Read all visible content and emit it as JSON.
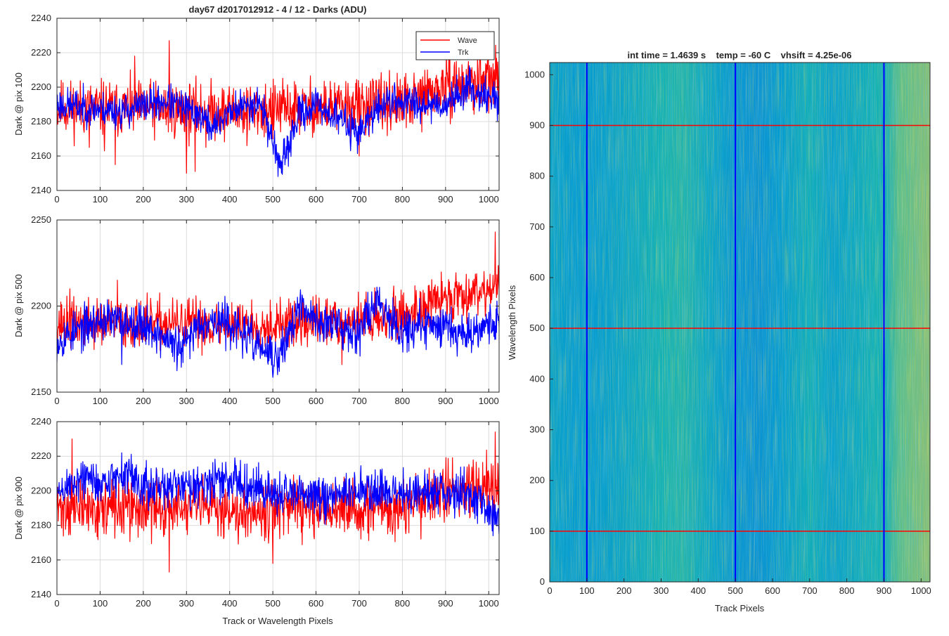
{
  "chart_data": [
    {
      "type": "line",
      "title": "day67 d2017012912 - 4 / 12 - Darks (ADU)",
      "xlabel": "",
      "ylabel": "Dark @ pix 100",
      "xlim": [
        0,
        1024
      ],
      "ylim": [
        2140,
        2240
      ],
      "xticks": [
        0,
        100,
        200,
        300,
        400,
        500,
        600,
        700,
        800,
        900,
        1000
      ],
      "yticks": [
        2140,
        2160,
        2180,
        2200,
        2220,
        2240
      ],
      "grid": true,
      "legend": {
        "position": "top-right",
        "entries": [
          "Wave",
          "Trk"
        ]
      },
      "series": [
        {
          "name": "Wave",
          "color": "#ff0000",
          "base": 2188,
          "noise": 8,
          "seed": 11,
          "trend": [
            [
              0,
              2188
            ],
            [
              400,
              2186
            ],
            [
              800,
              2190
            ],
            [
              900,
              2200
            ],
            [
              1024,
              2204
            ]
          ],
          "spikes": [
            [
              75,
              2165
            ],
            [
              110,
              2163
            ],
            [
              135,
              2155
            ],
            [
              180,
              2218
            ],
            [
              260,
              2227
            ],
            [
              300,
              2150
            ],
            [
              320,
              2151
            ],
            [
              345,
              2165
            ],
            [
              440,
              2166
            ],
            [
              500,
              2170
            ],
            [
              700,
              2160
            ],
            [
              925,
              2215
            ],
            [
              980,
              2220
            ]
          ]
        },
        {
          "name": "Trk",
          "color": "#0000ff",
          "base": 2190,
          "noise": 5,
          "seed": 23,
          "trend": [
            [
              0,
              2190
            ],
            [
              150,
              2186
            ],
            [
              250,
              2192
            ],
            [
              330,
              2184
            ],
            [
              360,
              2176
            ],
            [
              400,
              2186
            ],
            [
              470,
              2192
            ],
            [
              520,
              2153
            ],
            [
              560,
              2184
            ],
            [
              600,
              2190
            ],
            [
              700,
              2174
            ],
            [
              760,
              2192
            ],
            [
              900,
              2190
            ],
            [
              950,
              2200
            ],
            [
              1024,
              2192
            ]
          ],
          "spikes": [
            [
              520,
              2150
            ],
            [
              680,
              2163
            ]
          ]
        }
      ]
    },
    {
      "type": "line",
      "title": "",
      "xlabel": "",
      "ylabel": "Dark @ pix 500",
      "xlim": [
        0,
        1024
      ],
      "ylim": [
        2150,
        2250
      ],
      "xticks": [
        0,
        100,
        200,
        300,
        400,
        500,
        600,
        700,
        800,
        900,
        1000
      ],
      "yticks": [
        2150,
        2200,
        2250
      ],
      "grid": true,
      "series": [
        {
          "name": "Wave",
          "color": "#ff0000",
          "base": 2190,
          "noise": 7,
          "seed": 37,
          "trend": [
            [
              0,
              2190
            ],
            [
              500,
              2189
            ],
            [
              800,
              2194
            ],
            [
              900,
              2205
            ],
            [
              1024,
              2212
            ]
          ],
          "spikes": [
            [
              30,
              2210
            ],
            [
              140,
              2215
            ],
            [
              1015,
              2243
            ],
            [
              660,
              2166
            ]
          ]
        },
        {
          "name": "Trk",
          "color": "#0000ff",
          "base": 2190,
          "noise": 6,
          "seed": 53,
          "trend": [
            [
              0,
              2180
            ],
            [
              100,
              2192
            ],
            [
              200,
              2190
            ],
            [
              290,
              2174
            ],
            [
              330,
              2192
            ],
            [
              400,
              2190
            ],
            [
              510,
              2168
            ],
            [
              560,
              2198
            ],
            [
              620,
              2190
            ],
            [
              700,
              2186
            ],
            [
              740,
              2204
            ],
            [
              800,
              2186
            ],
            [
              900,
              2190
            ],
            [
              940,
              2184
            ],
            [
              1024,
              2192
            ]
          ],
          "spikes": [
            [
              150,
              2166
            ],
            [
              515,
              2162
            ]
          ]
        }
      ]
    },
    {
      "type": "line",
      "title": "",
      "xlabel": "Track or Wavelength Pixels",
      "ylabel": "Dark @ pix 900",
      "xlim": [
        0,
        1024
      ],
      "ylim": [
        2140,
        2240
      ],
      "xticks": [
        0,
        100,
        200,
        300,
        400,
        500,
        600,
        700,
        800,
        900,
        1000
      ],
      "yticks": [
        2140,
        2160,
        2180,
        2200,
        2220,
        2240
      ],
      "grid": true,
      "series": [
        {
          "name": "Wave",
          "color": "#ff0000",
          "base": 2190,
          "noise": 8,
          "seed": 71,
          "trend": [
            [
              0,
              2190
            ],
            [
              800,
              2189
            ],
            [
              900,
              2200
            ],
            [
              1024,
              2205
            ]
          ],
          "spikes": [
            [
              35,
              2230
            ],
            [
              260,
              2153
            ],
            [
              500,
              2158
            ],
            [
              1015,
              2234
            ]
          ]
        },
        {
          "name": "Trk",
          "color": "#0000ff",
          "base": 2200,
          "noise": 6,
          "seed": 89,
          "trend": [
            [
              0,
              2198
            ],
            [
              60,
              2208
            ],
            [
              100,
              2204
            ],
            [
              160,
              2210
            ],
            [
              220,
              2200
            ],
            [
              300,
              2204
            ],
            [
              420,
              2206
            ],
            [
              500,
              2198
            ],
            [
              600,
              2196
            ],
            [
              700,
              2200
            ],
            [
              800,
              2198
            ],
            [
              900,
              2200
            ],
            [
              960,
              2198
            ],
            [
              1000,
              2188
            ],
            [
              1024,
              2186
            ]
          ],
          "spikes": [
            [
              150,
              2222
            ],
            [
              1010,
              2174
            ]
          ]
        }
      ]
    },
    {
      "type": "heatmap",
      "title": "int time = 1.4639 s    temp = -60 C    vhsift = 4.25e-06",
      "xlabel": "Track Pixels",
      "ylabel": "Wavelength Pixels",
      "xlim": [
        0,
        1024
      ],
      "ylim": [
        0,
        1024
      ],
      "xticks": [
        0,
        100,
        200,
        300,
        400,
        500,
        600,
        700,
        800,
        900,
        1000
      ],
      "yticks": [
        0,
        100,
        200,
        300,
        400,
        500,
        600,
        700,
        800,
        900,
        1000
      ],
      "colormap": "parula",
      "column_profile": [
        [
          0,
          0.45
        ],
        [
          60,
          0.42
        ],
        [
          120,
          0.42
        ],
        [
          200,
          0.46
        ],
        [
          300,
          0.52
        ],
        [
          360,
          0.54
        ],
        [
          420,
          0.47
        ],
        [
          500,
          0.4
        ],
        [
          560,
          0.38
        ],
        [
          620,
          0.42
        ],
        [
          700,
          0.5
        ],
        [
          760,
          0.44
        ],
        [
          830,
          0.48
        ],
        [
          880,
          0.52
        ],
        [
          900,
          0.5
        ],
        [
          940,
          0.62
        ],
        [
          1024,
          0.68
        ]
      ],
      "vertical_lines": {
        "x": [
          100,
          500,
          900
        ],
        "color": "#0000ff"
      },
      "horizontal_lines": {
        "y": [
          100,
          500,
          900
        ],
        "color": "#ff0000"
      }
    }
  ]
}
